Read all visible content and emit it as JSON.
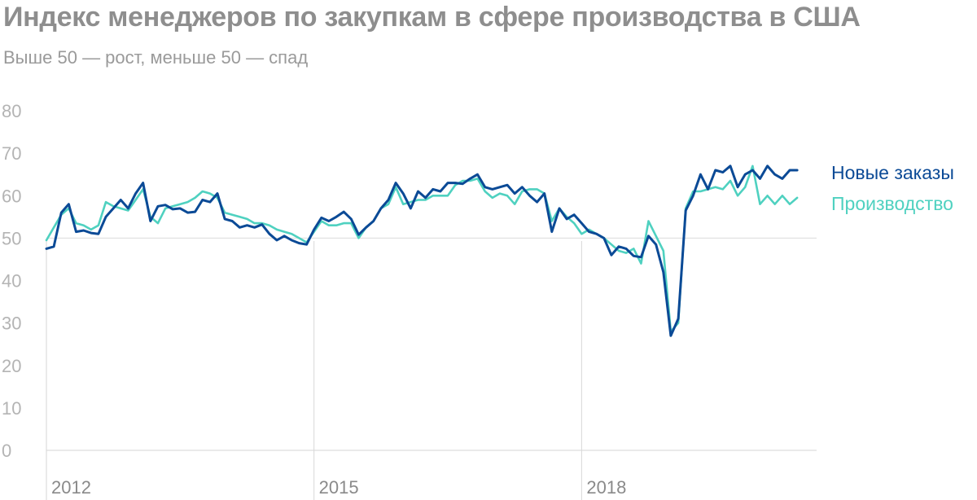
{
  "title": "Индекс менеджеров по закупкам в сфере производства в США",
  "subtitle": "Выше 50 — рост, меньше 50 — спад",
  "colors": {
    "new_orders": "#0b4a96",
    "production": "#4fd1c0",
    "axis": "#d6d6d6",
    "ref_line": "#dcdcdc"
  },
  "chart_data": {
    "type": "line",
    "title": "Индекс менеджеров по закупкам в сфере производства в США",
    "subtitle": "Выше 50 — рост, меньше 50 — спад",
    "ylim": [
      0,
      80
    ],
    "yticks": [
      0,
      10,
      20,
      30,
      40,
      50,
      60,
      70,
      80
    ],
    "xlim": [
      "2012-01",
      "2020-09"
    ],
    "xticks": [
      {
        "date": "2012-01",
        "label": "2012"
      },
      {
        "date": "2015-01",
        "label": "2015"
      },
      {
        "date": "2018-01",
        "label": "2018"
      }
    ],
    "reference_line": 50,
    "grid": false,
    "legend": "right",
    "start_month": "2012-01",
    "frequency": "monthly",
    "series": [
      {
        "name": "Новые заказы",
        "values": [
          47.5,
          48.0,
          56.0,
          58.0,
          51.5,
          51.8,
          51.2,
          51.0,
          55.0,
          57.0,
          59.0,
          57.0,
          60.5,
          63.0,
          54.0,
          57.5,
          57.8,
          56.8,
          57.0,
          56.0,
          56.2,
          59.0,
          58.5,
          60.5,
          54.5,
          54.0,
          52.5,
          53.0,
          52.5,
          53.2,
          51.0,
          49.5,
          50.5,
          49.5,
          48.8,
          48.5,
          52.0,
          54.8,
          54.0,
          55.0,
          56.2,
          54.5,
          50.8,
          52.5,
          54.0,
          57.0,
          59.0,
          63.0,
          60.5,
          57.0,
          61.0,
          59.5,
          61.5,
          61.0,
          63.0,
          63.0,
          62.8,
          64.0,
          65.0,
          62.0,
          61.5,
          62.0,
          62.5,
          60.5,
          62.0,
          60.0,
          58.5,
          60.5,
          51.5,
          57.0,
          54.5,
          55.5,
          53.5,
          51.5,
          51.0,
          50.0,
          46.0,
          48.0,
          47.5,
          45.8,
          45.5,
          50.5,
          48.5,
          42.0,
          27.0,
          31.0,
          56.5,
          60.0,
          65.0,
          61.5,
          66.0,
          65.5,
          67.0,
          62.0,
          65.0,
          66.0,
          64.0,
          67.0,
          65.0,
          64.0,
          66.0,
          66.0
        ],
        "color": "#0b4a96"
      },
      {
        "name": "Производство",
        "values": [
          49.5,
          52.5,
          55.5,
          57.0,
          53.5,
          53.0,
          52.0,
          53.0,
          58.5,
          57.5,
          57.0,
          56.5,
          59.0,
          61.5,
          55.0,
          53.5,
          57.0,
          57.5,
          58.0,
          58.5,
          59.5,
          61.0,
          60.5,
          59.5,
          56.0,
          55.5,
          55.0,
          54.5,
          53.5,
          53.5,
          53.0,
          52.0,
          51.5,
          51.0,
          50.0,
          49.0,
          51.5,
          54.0,
          53.0,
          53.0,
          53.5,
          53.5,
          50.0,
          52.5,
          54.0,
          57.0,
          58.0,
          62.0,
          58.0,
          58.5,
          59.0,
          59.0,
          60.0,
          60.0,
          60.0,
          62.5,
          63.5,
          63.5,
          64.0,
          61.0,
          59.5,
          60.5,
          60.0,
          58.0,
          61.0,
          61.5,
          61.5,
          60.5,
          54.0,
          57.0,
          55.0,
          53.5,
          51.0,
          52.0,
          51.0,
          50.0,
          48.5,
          47.0,
          46.5,
          47.5,
          44.0,
          54.0,
          50.5,
          47.0,
          28.0,
          30.0,
          57.0,
          61.0,
          61.0,
          61.5,
          62.0,
          61.5,
          63.5,
          60.0,
          62.0,
          67.0,
          58.0,
          60.0,
          58.0,
          60.0,
          58.0,
          59.5
        ],
        "color": "#4fd1c0"
      }
    ]
  },
  "legend": {
    "new_orders": "Новые заказы",
    "production": "Производство"
  }
}
